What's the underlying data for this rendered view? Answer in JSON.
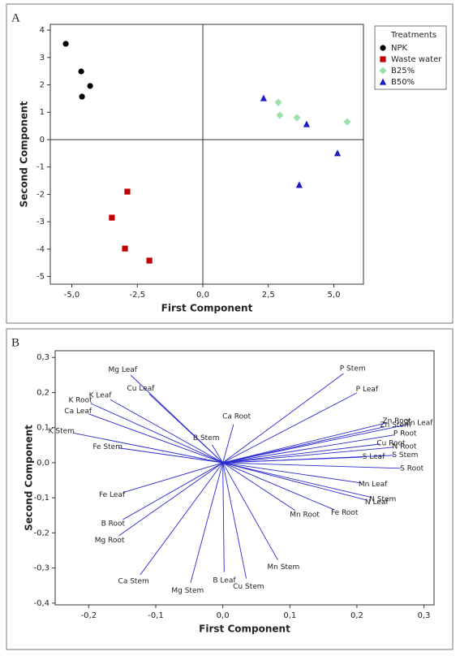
{
  "chart_data": [
    {
      "type": "scatter",
      "panel": "A",
      "xlabel": "First Component",
      "ylabel": "Second Component",
      "xlim": [
        -5.82,
        6.13
      ],
      "ylim": [
        -5.28,
        4.21
      ],
      "xticks": [
        {
          "value": -5,
          "label": "-5,0"
        },
        {
          "value": -2.5,
          "label": "-2,5"
        },
        {
          "value": 0,
          "label": "0,0"
        },
        {
          "value": 2.5,
          "label": "2,5"
        },
        {
          "value": 5,
          "label": "5,0"
        }
      ],
      "yticks": [
        -5,
        -4,
        -3,
        -2,
        -1,
        0,
        1,
        2,
        3,
        4
      ],
      "zero_lines": true,
      "legend": "right",
      "legend_title": "Treatments",
      "series": [
        {
          "name": "NPK",
          "color": "#000000",
          "marker": "circle",
          "x": [
            -5.23,
            -4.64,
            -4.3,
            -4.61
          ],
          "y": [
            3.5,
            2.49,
            1.96,
            1.57
          ]
        },
        {
          "name": "Waste water",
          "color": "#c00000",
          "marker": "square",
          "x": [
            -2.88,
            -3.47,
            -2.97,
            -2.04
          ],
          "y": [
            -1.9,
            -2.85,
            -3.98,
            -4.42
          ]
        },
        {
          "name": "B25%",
          "color": "#9ee0ac",
          "marker": "diamond",
          "x": [
            2.88,
            2.94,
            3.59,
            5.51
          ],
          "y": [
            1.36,
            0.89,
            0.8,
            0.65
          ]
        },
        {
          "name": "B50%",
          "color": "#1c1cc4",
          "marker": "triangle",
          "x": [
            2.32,
            3.96,
            5.14,
            3.68
          ],
          "y": [
            1.51,
            0.56,
            -0.5,
            -1.66
          ]
        }
      ]
    },
    {
      "type": "vectors",
      "panel": "B",
      "xlabel": "First Component",
      "ylabel": "Second Component",
      "xlim": [
        -0.25,
        0.315
      ],
      "ylim": [
        -0.405,
        0.319
      ],
      "xticks": [
        {
          "value": -0.2,
          "label": "-0,2"
        },
        {
          "value": -0.1,
          "label": "-0,1"
        },
        {
          "value": 0,
          "label": "0,0"
        },
        {
          "value": 0.1,
          "label": "0,1"
        },
        {
          "value": 0.2,
          "label": "0,2"
        },
        {
          "value": 0.3,
          "label": "0,3"
        }
      ],
      "yticks": [
        {
          "value": -0.4,
          "label": "-0,4"
        },
        {
          "value": -0.3,
          "label": "-0,3"
        },
        {
          "value": -0.2,
          "label": "-0,2"
        },
        {
          "value": -0.1,
          "label": "-0,1"
        },
        {
          "value": 0,
          "label": "0,0"
        },
        {
          "value": 0.1,
          "label": "0,1"
        },
        {
          "value": 0.2,
          "label": "0,2"
        },
        {
          "value": 0.3,
          "label": "0,3"
        }
      ],
      "zero_lines": false,
      "color": "#2a2ad0",
      "labels": [
        "Mg Leaf",
        "Cu Leaf",
        "K Leaf",
        "K Root",
        "Ca Leaf",
        "K Stem",
        "Fe Stem",
        "Fe Leaf",
        "B Root",
        "Mg Root",
        "Ca Stem",
        "Mg Stem",
        "B Leaf",
        "Cu Stem",
        "Mn Stem",
        "Mn Root",
        "Fe Root",
        "Mn Leaf",
        "N Stem",
        "N Leaf",
        "S Leaf",
        "S Stem",
        "S Root",
        "N Root",
        "Cu Root",
        "P Root",
        "Zn Stem",
        "Zn Root",
        "Zn Leaf",
        "P Leaf",
        "P Stem",
        "Ca Root",
        "B Stem"
      ],
      "x": [
        -0.137,
        -0.11,
        -0.168,
        -0.197,
        -0.2,
        -0.224,
        -0.155,
        -0.149,
        -0.149,
        -0.155,
        -0.123,
        -0.048,
        0.002,
        0.035,
        0.082,
        0.108,
        0.166,
        0.207,
        0.222,
        0.213,
        0.208,
        0.255,
        0.265,
        0.254,
        0.234,
        0.255,
        0.241,
        0.243,
        0.276,
        0.2,
        0.18,
        0.016,
        -0.016
      ],
      "y": [
        0.249,
        0.196,
        0.18,
        0.169,
        0.139,
        0.085,
        0.042,
        -0.085,
        -0.162,
        -0.208,
        -0.319,
        -0.342,
        -0.312,
        -0.33,
        -0.277,
        -0.136,
        -0.134,
        -0.058,
        -0.099,
        -0.106,
        0.016,
        0.021,
        -0.016,
        0.044,
        0.053,
        0.079,
        0.102,
        0.113,
        0.109,
        0.199,
        0.254,
        0.109,
        0.051
      ]
    }
  ]
}
